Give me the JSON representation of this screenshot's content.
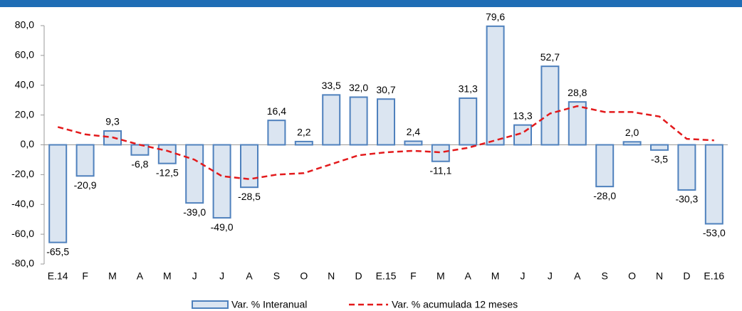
{
  "chart_data": {
    "type": "bar_line",
    "categories": [
      "E.14",
      "F",
      "M",
      "A",
      "M",
      "J",
      "J",
      "A",
      "S",
      "O",
      "N",
      "D",
      "E.15",
      "F",
      "M",
      "A",
      "M",
      "J",
      "J",
      "A",
      "S",
      "O",
      "N",
      "D",
      "E.16"
    ],
    "series": [
      {
        "name": "Var. % Interanual",
        "type": "bar",
        "color": "#dbe5f1",
        "stroke": "#4f81bd",
        "values": [
          -65.5,
          -20.9,
          9.3,
          -6.8,
          -12.5,
          -39.0,
          -49.0,
          -28.5,
          16.4,
          2.2,
          33.5,
          32.0,
          30.7,
          2.4,
          -11.1,
          31.3,
          79.6,
          13.3,
          52.7,
          28.8,
          -28.0,
          2.0,
          -3.5,
          -30.3,
          -53.0
        ],
        "value_labels": [
          "-65,5",
          "-20,9",
          "9,3",
          "-6,8",
          "-12,5",
          "-39,0",
          "-49,0",
          "-28,5",
          "16,4",
          "2,2",
          "33,5",
          "32,0",
          "30,7",
          "2,4",
          "-11,1",
          "31,3",
          "79,6",
          "13,3",
          "52,7",
          "28,8",
          "-28,0",
          "2,0",
          "-3,5",
          "-30,3",
          "-53,0"
        ]
      },
      {
        "name": "Var. % acumulada  12 meses",
        "type": "line",
        "color": "#e31a1c",
        "values": [
          12,
          7,
          5,
          0,
          -4,
          -10,
          -21,
          -23,
          -20,
          -19,
          -13,
          -7,
          -5,
          -4,
          -5,
          -2,
          3,
          8,
          21,
          26,
          22,
          22,
          19,
          4,
          3
        ]
      }
    ],
    "ylim": [
      -80,
      80
    ],
    "yticks": [
      {
        "value": -80,
        "label": "-80,0"
      },
      {
        "value": -60,
        "label": "-60,0"
      },
      {
        "value": -40,
        "label": "-40,0"
      },
      {
        "value": -20,
        "label": "-20,0"
      },
      {
        "value": 0,
        "label": "0,0"
      },
      {
        "value": 20,
        "label": "20,0"
      },
      {
        "value": 40,
        "label": "40,0"
      },
      {
        "value": 60,
        "label": "60,0"
      },
      {
        "value": 80,
        "label": "80,0"
      }
    ],
    "grid": false
  }
}
